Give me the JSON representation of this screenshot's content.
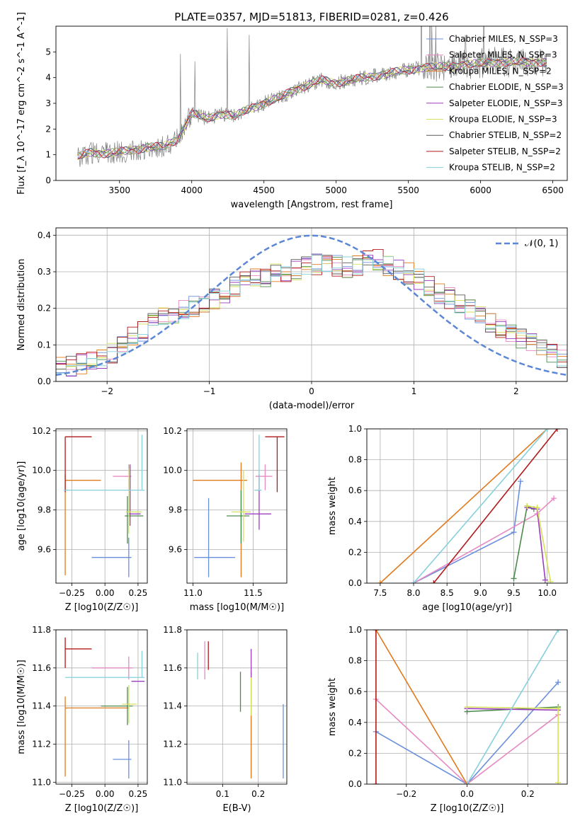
{
  "figure": {
    "title": "PLATE=0357, MJD=51813, FIBERID=0281, z=0.426"
  },
  "chart_data": [
    {
      "id": "spectrum",
      "type": "line",
      "xlabel": "wavelength [Angstrom, rest frame]",
      "ylabel": "Flux [f_λ 10^-17 erg cm^-2 s^-1 A^-1]",
      "xlim": [
        3060,
        6600
      ],
      "ylim": [
        0,
        6
      ],
      "xticks": [
        3500,
        4000,
        4500,
        5000,
        5500,
        6000,
        6500
      ],
      "yticks": [
        0,
        1,
        2,
        3,
        4,
        5
      ],
      "grid": false,
      "legend_position": "right",
      "legend": [
        {
          "label": "Chabrier MILES, N_SSP=3",
          "color": "#6a8fdc"
        },
        {
          "label": "Salpeter MILES, N_SSP=3",
          "color": "#e58ac2"
        },
        {
          "label": "Kroupa MILES, N_SSP=2",
          "color": "#e07a1c"
        },
        {
          "label": "Chabrier ELODIE, N_SSP=3",
          "color": "#4c8a4c"
        },
        {
          "label": "Salpeter ELODIE, N_SSP=3",
          "color": "#9b3fc0"
        },
        {
          "label": "Kroupa ELODIE, N_SSP=3",
          "color": "#d6e05a"
        },
        {
          "label": "Chabrier STELIB, N_SSP=2",
          "color": "#5a5a5a"
        },
        {
          "label": "Salpeter STELIB, N_SSP=2",
          "color": "#b01a1a"
        },
        {
          "label": "Kroupa STELIB, N_SSP=2",
          "color": "#86d0dc"
        }
      ],
      "continuum": [
        {
          "x": 3210,
          "y": 0.9
        },
        {
          "x": 3300,
          "y": 1.1
        },
        {
          "x": 3400,
          "y": 1.05
        },
        {
          "x": 3500,
          "y": 1.1
        },
        {
          "x": 3600,
          "y": 1.2
        },
        {
          "x": 3700,
          "y": 1.3
        },
        {
          "x": 3800,
          "y": 1.3
        },
        {
          "x": 3900,
          "y": 1.6
        },
        {
          "x": 4000,
          "y": 2.6
        },
        {
          "x": 4100,
          "y": 2.4
        },
        {
          "x": 4200,
          "y": 2.6
        },
        {
          "x": 4300,
          "y": 2.5
        },
        {
          "x": 4400,
          "y": 2.8
        },
        {
          "x": 4500,
          "y": 3.0
        },
        {
          "x": 4600,
          "y": 3.2
        },
        {
          "x": 4700,
          "y": 3.5
        },
        {
          "x": 4800,
          "y": 3.7
        },
        {
          "x": 4900,
          "y": 3.9
        },
        {
          "x": 5000,
          "y": 3.8
        },
        {
          "x": 5100,
          "y": 3.9
        },
        {
          "x": 5200,
          "y": 4.0
        },
        {
          "x": 5300,
          "y": 4.1
        },
        {
          "x": 5400,
          "y": 4.2
        },
        {
          "x": 5500,
          "y": 4.3
        },
        {
          "x": 5600,
          "y": 4.4
        },
        {
          "x": 5700,
          "y": 4.4
        },
        {
          "x": 5800,
          "y": 4.45
        },
        {
          "x": 5900,
          "y": 4.5
        },
        {
          "x": 6000,
          "y": 4.55
        },
        {
          "x": 6100,
          "y": 4.6
        },
        {
          "x": 6200,
          "y": 4.6
        },
        {
          "x": 6300,
          "y": 4.6
        },
        {
          "x": 6400,
          "y": 4.62
        },
        {
          "x": 6460,
          "y": 4.6
        }
      ]
    },
    {
      "id": "residuals",
      "type": "line",
      "xlabel": "(data-model)/error",
      "ylabel": "Normed distribution",
      "xlim": [
        -2.5,
        2.5
      ],
      "ylim": [
        0,
        0.42
      ],
      "xticks": [
        -2,
        -1,
        0,
        1,
        2
      ],
      "yticks": [
        0.0,
        0.1,
        0.2,
        0.3,
        0.4
      ],
      "grid": true,
      "legend_position": "top-right",
      "series": [
        {
          "name": "𝒩(0, 1)",
          "style": "dashed",
          "color": "#5b87d6",
          "mean": 0,
          "sigma": 1
        }
      ],
      "histogram_envelope": [
        {
          "x": -2.45,
          "y": 0.04
        },
        {
          "x": -2.25,
          "y": 0.05
        },
        {
          "x": -2.05,
          "y": 0.07
        },
        {
          "x": -1.85,
          "y": 0.11
        },
        {
          "x": -1.65,
          "y": 0.15
        },
        {
          "x": -1.45,
          "y": 0.18
        },
        {
          "x": -1.25,
          "y": 0.2
        },
        {
          "x": -1.05,
          "y": 0.22
        },
        {
          "x": -0.85,
          "y": 0.25
        },
        {
          "x": -0.65,
          "y": 0.28
        },
        {
          "x": -0.45,
          "y": 0.29
        },
        {
          "x": -0.25,
          "y": 0.3
        },
        {
          "x": -0.05,
          "y": 0.32
        },
        {
          "x": 0.15,
          "y": 0.32
        },
        {
          "x": 0.35,
          "y": 0.31
        },
        {
          "x": 0.55,
          "y": 0.34
        },
        {
          "x": 0.75,
          "y": 0.31
        },
        {
          "x": 0.95,
          "y": 0.29
        },
        {
          "x": 1.15,
          "y": 0.25
        },
        {
          "x": 1.35,
          "y": 0.22
        },
        {
          "x": 1.55,
          "y": 0.19
        },
        {
          "x": 1.75,
          "y": 0.15
        },
        {
          "x": 1.95,
          "y": 0.12
        },
        {
          "x": 2.15,
          "y": 0.1
        },
        {
          "x": 2.35,
          "y": 0.07
        },
        {
          "x": 2.45,
          "y": 0.05
        }
      ]
    },
    {
      "id": "age-vs-Z",
      "type": "scatter",
      "xlabel": "Z [log10(Z/Z☉)]",
      "ylabel": "age  [log10(age/yr)]",
      "xlim": [
        -0.37,
        0.32
      ],
      "ylim": [
        9.43,
        10.21
      ],
      "xticks": [
        -0.25,
        0.0,
        0.25
      ],
      "yticks": [
        9.6,
        9.8,
        10.0,
        10.2
      ],
      "grid": true,
      "points": [
        {
          "x": 0.18,
          "y": 9.56,
          "xerr": [
            0.28,
            0.02
          ],
          "yerr": [
            0.1,
            0.1
          ],
          "color": "#6a8fdc"
        },
        {
          "x": 0.18,
          "y": 9.97,
          "xerr": [
            0.12,
            0.02
          ],
          "yerr": [
            0.07,
            0.06
          ],
          "color": "#e58ac2"
        },
        {
          "x": -0.3,
          "y": 9.95,
          "xerr": [
            0.0,
            0.27
          ],
          "yerr": [
            0.48,
            0.03
          ],
          "color": "#e07a1c"
        },
        {
          "x": 0.17,
          "y": 9.77,
          "xerr": [
            0.02,
            0.12
          ],
          "yerr": [
            0.14,
            0.1
          ],
          "color": "#4c8a4c"
        },
        {
          "x": 0.19,
          "y": 9.78,
          "xerr": [
            0.01,
            0.08
          ],
          "yerr": [
            0.06,
            0.25
          ],
          "color": "#9b3fc0"
        },
        {
          "x": 0.18,
          "y": 9.79,
          "xerr": [
            0.02,
            0.1
          ],
          "yerr": [
            0.11,
            0.22
          ],
          "color": "#d6e05a"
        },
        {
          "x": -0.3,
          "y": 10.17,
          "xerr": [
            0.0,
            0.2
          ],
          "yerr": [
            0.28,
            0.0
          ],
          "color": "#b01a1a"
        },
        {
          "x": 0.28,
          "y": 9.9,
          "xerr": [
            0.59,
            0.02
          ],
          "yerr": [
            0.0,
            0.28
          ],
          "color": "#86d0dc"
        }
      ]
    },
    {
      "id": "age-vs-mass",
      "type": "scatter",
      "xlabel": "mass [log10(M/M☉)]",
      "ylabel": "",
      "xlim": [
        10.95,
        11.78
      ],
      "ylim": [
        9.43,
        10.21
      ],
      "xticks": [
        11.0,
        11.5
      ],
      "yticks": [
        9.6,
        9.8,
        10.0,
        10.2
      ],
      "grid": true,
      "points": [
        {
          "x": 11.13,
          "y": 9.56,
          "xerr": [
            0.12,
            0.22
          ],
          "yerr": [
            0.1,
            0.3
          ],
          "color": "#6a8fdc"
        },
        {
          "x": 11.6,
          "y": 9.97,
          "xerr": [
            0.08,
            0.06
          ],
          "yerr": [
            0.07,
            0.06
          ],
          "color": "#e58ac2"
        },
        {
          "x": 11.4,
          "y": 9.95,
          "xerr": [
            0.4,
            0.05
          ],
          "yerr": [
            0.49,
            0.09
          ],
          "color": "#e07a1c"
        },
        {
          "x": 11.4,
          "y": 9.77,
          "xerr": [
            0.12,
            0.07
          ],
          "yerr": [
            0.14,
            0.13
          ],
          "color": "#4c8a4c"
        },
        {
          "x": 11.55,
          "y": 9.78,
          "xerr": [
            0.12,
            0.1
          ],
          "yerr": [
            0.08,
            0.2
          ],
          "color": "#9b3fc0"
        },
        {
          "x": 11.42,
          "y": 9.79,
          "xerr": [
            0.1,
            0.06
          ],
          "yerr": [
            0.15,
            0.21
          ],
          "color": "#d6e05a"
        },
        {
          "x": 11.7,
          "y": 10.17,
          "xerr": [
            0.1,
            0.06
          ],
          "yerr": [
            0.28,
            0.0
          ],
          "color": "#b01a1a"
        },
        {
          "x": 11.55,
          "y": 9.9,
          "xerr": [
            0.04,
            0.02
          ],
          "yerr": [
            0.0,
            0.28
          ],
          "color": "#86d0dc"
        }
      ]
    },
    {
      "id": "weight-vs-age",
      "type": "line",
      "xlabel": "age  [log10(age/yr)]",
      "ylabel": "mass weight",
      "xlim": [
        7.3,
        10.3
      ],
      "ylim": [
        0.0,
        1.0
      ],
      "xticks": [
        7.5,
        8.0,
        8.5,
        9.0,
        9.5,
        10.0
      ],
      "yticks": [
        0.0,
        0.2,
        0.4,
        0.6,
        0.8,
        1.0
      ],
      "grid": true,
      "series": [
        {
          "color": "#6a8fdc",
          "points": [
            [
              8.0,
              0.0
            ],
            [
              9.5,
              0.33
            ],
            [
              9.6,
              0.66
            ]
          ]
        },
        {
          "color": "#e58ac2",
          "points": [
            [
              8.0,
              0.0
            ],
            [
              9.85,
              0.45
            ],
            [
              10.1,
              0.55
            ]
          ]
        },
        {
          "color": "#e07a1c",
          "points": [
            [
              7.5,
              0.0
            ],
            [
              10.0,
              1.0
            ]
          ]
        },
        {
          "color": "#4c8a4c",
          "points": [
            [
              9.5,
              0.03
            ],
            [
              9.7,
              0.5
            ],
            [
              9.8,
              0.48
            ]
          ]
        },
        {
          "color": "#9b3fc0",
          "points": [
            [
              9.7,
              0.49
            ],
            [
              9.85,
              0.48
            ],
            [
              9.97,
              0.02
            ]
          ]
        },
        {
          "color": "#d6e05a",
          "points": [
            [
              9.7,
              0.5
            ],
            [
              9.85,
              0.49
            ],
            [
              10.05,
              0.01
            ]
          ]
        },
        {
          "color": "#b01a1a",
          "points": [
            [
              8.3,
              0.0
            ],
            [
              10.15,
              1.0
            ]
          ]
        },
        {
          "color": "#86d0dc",
          "points": [
            [
              8.0,
              0.0
            ],
            [
              10.0,
              1.0
            ]
          ]
        }
      ]
    },
    {
      "id": "mass-vs-Z",
      "type": "scatter",
      "xlabel": "Z [log10(Z/Z☉)]",
      "ylabel": "mass [log10(M/M☉)]",
      "xlim": [
        -0.37,
        0.32
      ],
      "ylim": [
        10.99,
        11.8
      ],
      "xticks": [
        -0.25,
        0.0,
        0.25
      ],
      "yticks": [
        11.0,
        11.2,
        11.4,
        11.6,
        11.8
      ],
      "grid": true,
      "points": [
        {
          "x": 0.18,
          "y": 11.12,
          "xerr": [
            0.12,
            0.02
          ],
          "yerr": [
            0.1,
            0.1
          ],
          "color": "#6a8fdc"
        },
        {
          "x": 0.18,
          "y": 11.6,
          "xerr": [
            0.28,
            0.03
          ],
          "yerr": [
            0.06,
            0.06
          ],
          "color": "#e58ac2"
        },
        {
          "x": -0.3,
          "y": 11.39,
          "xerr": [
            0.0,
            0.48
          ],
          "yerr": [
            0.36,
            0.06
          ],
          "color": "#e07a1c"
        },
        {
          "x": 0.17,
          "y": 11.4,
          "xerr": [
            0.2,
            0.04
          ],
          "yerr": [
            0.1,
            0.1
          ],
          "color": "#4c8a4c"
        },
        {
          "x": 0.22,
          "y": 11.53,
          "xerr": [
            0.02,
            0.08
          ],
          "yerr": [
            0.0,
            0.0
          ],
          "color": "#9b3fc0"
        },
        {
          "x": 0.18,
          "y": 11.41,
          "xerr": [
            0.05,
            0.06
          ],
          "yerr": [
            0.1,
            0.1
          ],
          "color": "#d6e05a"
        },
        {
          "x": -0.3,
          "y": 11.7,
          "xerr": [
            0.0,
            0.2
          ],
          "yerr": [
            0.1,
            0.06
          ],
          "color": "#b01a1a"
        },
        {
          "x": 0.28,
          "y": 11.55,
          "xerr": [
            0.58,
            0.02
          ],
          "yerr": [
            0.0,
            0.14
          ],
          "color": "#86d0dc"
        }
      ]
    },
    {
      "id": "mass-vs-ebv",
      "type": "scatter",
      "xlabel": "E(B-V)",
      "ylabel": "",
      "xlim": [
        0.0,
        0.28
      ],
      "ylim": [
        10.99,
        11.8
      ],
      "xticks": [
        0.1,
        0.2
      ],
      "yticks": [
        11.0,
        11.2,
        11.4,
        11.6,
        11.8
      ],
      "grid": true,
      "points": [
        {
          "x": 0.27,
          "y": 11.2,
          "yerr": [
            0.18,
            0.21
          ],
          "color": "#6a8fdc"
        },
        {
          "x": 0.05,
          "y": 11.62,
          "yerr": [
            0.08,
            0.12
          ],
          "color": "#e58ac2"
        },
        {
          "x": 0.18,
          "y": 11.3,
          "yerr": [
            0.28,
            0.28
          ],
          "color": "#e07a1c"
        },
        {
          "x": 0.15,
          "y": 11.47,
          "yerr": [
            0.1,
            0.11
          ],
          "color": "#4c8a4c"
        },
        {
          "x": 0.18,
          "y": 11.6,
          "yerr": [
            0.05,
            0.1
          ],
          "color": "#9b3fc0"
        },
        {
          "x": 0.18,
          "y": 11.45,
          "yerr": [
            0.1,
            0.1
          ],
          "color": "#d6e05a"
        },
        {
          "x": 0.06,
          "y": 11.67,
          "yerr": [
            0.08,
            0.07
          ],
          "color": "#b01a1a"
        },
        {
          "x": 0.03,
          "y": 11.6,
          "yerr": [
            0.06,
            0.08
          ],
          "color": "#86d0dc"
        }
      ]
    },
    {
      "id": "weight-vs-Z",
      "type": "line",
      "xlabel": "Z [log10(Z/Z☉)]",
      "ylabel": "mass weight",
      "xlim": [
        -0.33,
        0.33
      ],
      "ylim": [
        0.0,
        1.0
      ],
      "xticks": [
        -0.2,
        0.0,
        0.2
      ],
      "yticks": [
        0.0,
        0.2,
        0.4,
        0.6,
        0.8,
        1.0
      ],
      "grid": true,
      "series": [
        {
          "color": "#6a8fdc",
          "points": [
            [
              -0.3,
              0.34
            ],
            [
              0.0,
              0.0
            ],
            [
              0.3,
              0.66
            ]
          ]
        },
        {
          "color": "#e58ac2",
          "points": [
            [
              -0.3,
              0.55
            ],
            [
              0.0,
              0.0
            ],
            [
              0.3,
              0.45
            ]
          ]
        },
        {
          "color": "#e07a1c",
          "points": [
            [
              -0.3,
              1.0
            ],
            [
              0.0,
              0.0
            ]
          ]
        },
        {
          "color": "#4c8a4c",
          "points": [
            [
              0.0,
              0.47
            ],
            [
              0.3,
              0.5
            ]
          ]
        },
        {
          "color": "#9b3fc0",
          "points": [
            [
              0.0,
              0.49
            ],
            [
              0.3,
              0.48
            ]
          ]
        },
        {
          "color": "#d6e05a",
          "points": [
            [
              0.0,
              0.5
            ],
            [
              0.3,
              0.49
            ],
            [
              0.3,
              0.01
            ]
          ]
        },
        {
          "color": "#b01a1a",
          "points": [
            [
              -0.3,
              0.0
            ],
            [
              -0.3,
              1.0
            ]
          ]
        },
        {
          "color": "#86d0dc",
          "points": [
            [
              0.0,
              0.0
            ],
            [
              0.3,
              1.0
            ]
          ]
        }
      ]
    }
  ]
}
